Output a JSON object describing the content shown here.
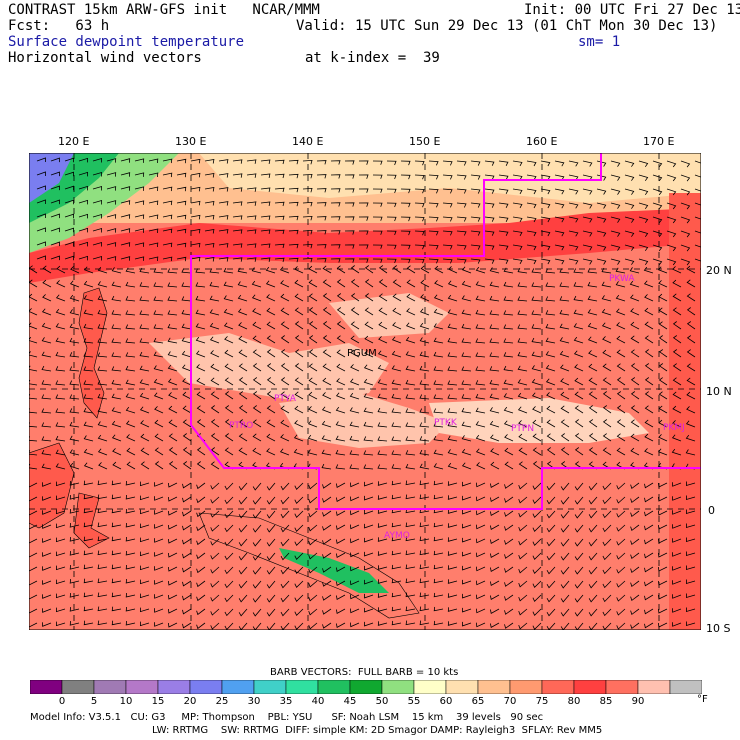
{
  "header": {
    "line1_left": "CONTRAST 15km ARW-GFS init   NCAR/MMM",
    "line1_right": "Init: 00 UTC Fri 27 Dec 13",
    "line2_left": "Fcst:   63 h",
    "line2_right": "Valid: 15 UTC Sun 29 Dec 13 (01 ChT Mon 30 Dec 13)",
    "line3_left": "Surface dewpoint temperature",
    "line3_right": "sm= 1",
    "line4_left": "Horizontal wind vectors",
    "line4_right": "at k-index =  39"
  },
  "map": {
    "lon_labels": [
      "120 E",
      "130 E",
      "140 E",
      "150 E",
      "160 E",
      "170 E"
    ],
    "lat_labels": [
      "20 N",
      "10 N",
      "0",
      "10 S"
    ],
    "station_labels": [
      "PGUM",
      "PTKK",
      "PTRO",
      "PTYA",
      "PTPN",
      "PKMJ",
      "PKWA",
      "AYMO"
    ],
    "boundary_color": "#ff00ff"
  },
  "legend": {
    "barb_title": "BARB VECTORS:  FULL BARB = 10 kts",
    "unit": "°F",
    "ticks": [
      "0",
      "5",
      "10",
      "15",
      "20",
      "25",
      "30",
      "35",
      "40",
      "45",
      "50",
      "55",
      "60",
      "65",
      "70",
      "75",
      "80",
      "85",
      "90"
    ],
    "colors": [
      "#800080",
      "#808080",
      "#a07ab4",
      "#b478c8",
      "#9a7ee6",
      "#7a7ef0",
      "#50a0f0",
      "#40d0c8",
      "#30e0a0",
      "#20c060",
      "#10a830",
      "#90e080",
      "#ffffc8",
      "#ffe0b0",
      "#ffc090",
      "#ff9a70",
      "#ff6858",
      "#ff4040",
      "#ff7060",
      "#ffc0b0",
      "#c0c0c0"
    ]
  },
  "footer": {
    "line1": "Model Info: V3.5.1   CU: G3     MP: Thompson    PBL: YSU      SF: Noah LSM    15 km    39 levels   90 sec",
    "line2": "LW: RRTMG    SW: RRTMG  DIFF: simple KM: 2D Smagor DAMP: Rayleigh3  SFLAY: Rev MM5"
  }
}
